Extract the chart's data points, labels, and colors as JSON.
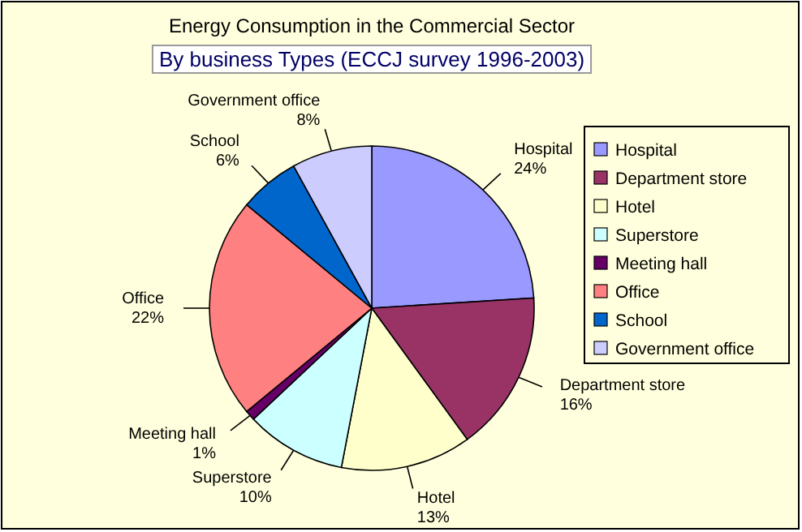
{
  "chart_data": {
    "type": "pie",
    "title": "Energy Consumption in the Commercial Sector",
    "subtitle": "By business Types  (ECCJ survey 1996-2003)",
    "categories": [
      "Hospital",
      "Department store",
      "Hotel",
      "Superstore",
      "Meeting hall",
      "Office",
      "School",
      "Government office"
    ],
    "values": [
      24,
      16,
      13,
      10,
      1,
      22,
      6,
      8
    ],
    "value_labels": [
      "24%",
      "16%",
      "13%",
      "10%",
      "1%",
      "22%",
      "6%",
      "8%"
    ],
    "colors": [
      "#9999ff",
      "#993366",
      "#ffffcc",
      "#ccffff",
      "#660066",
      "#ff8080",
      "#0066cc",
      "#ccccff"
    ],
    "legend": "right"
  }
}
